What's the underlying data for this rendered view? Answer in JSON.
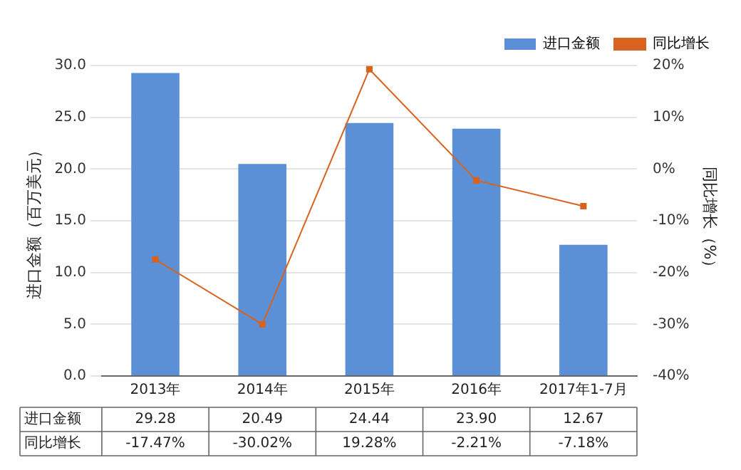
{
  "chart_data": {
    "type": "bar",
    "categories": [
      "2013年",
      "2014年",
      "2015年",
      "2016年",
      "2017年1-7月"
    ],
    "series": [
      {
        "name": "进口金额",
        "color": "#5b8fd6",
        "values": [
          29.28,
          20.49,
          24.44,
          23.9,
          12.67
        ],
        "value_labels": [
          "29.28",
          "20.49",
          "24.44",
          "23.90",
          "12.67"
        ]
      },
      {
        "name": "同比增长",
        "type": "line",
        "axis": "y2",
        "color": "#d9631e",
        "values": [
          -17.47,
          -30.02,
          19.28,
          -2.21,
          -7.18
        ],
        "value_labels": [
          "-17.47%",
          "-30.02%",
          "19.28%",
          "-2.21%",
          "-7.18%"
        ]
      }
    ],
    "ylabel": "进口金额（百万美元）",
    "y2label": "同比增长（%）",
    "ylim": [
      0,
      30
    ],
    "yticks": [
      {
        "value": 0,
        "label": "0.0"
      },
      {
        "value": 5,
        "label": "5.0"
      },
      {
        "value": 10,
        "label": "10.0"
      },
      {
        "value": 15,
        "label": "15.0"
      },
      {
        "value": 20,
        "label": "20.0"
      },
      {
        "value": 25,
        "label": "25.0"
      },
      {
        "value": 30,
        "label": "30.0"
      }
    ],
    "y2lim": [
      -40,
      20
    ],
    "y2ticks": [
      {
        "value": -40,
        "label": "-40%"
      },
      {
        "value": -30,
        "label": "-30%"
      },
      {
        "value": -20,
        "label": "-20%"
      },
      {
        "value": -10,
        "label": "-10%"
      },
      {
        "value": 0,
        "label": "0%"
      },
      {
        "value": 10,
        "label": "10%"
      },
      {
        "value": 20,
        "label": "20%"
      }
    ],
    "grid": "y",
    "legend": "top right",
    "marker": "square",
    "line_style": "solid"
  }
}
